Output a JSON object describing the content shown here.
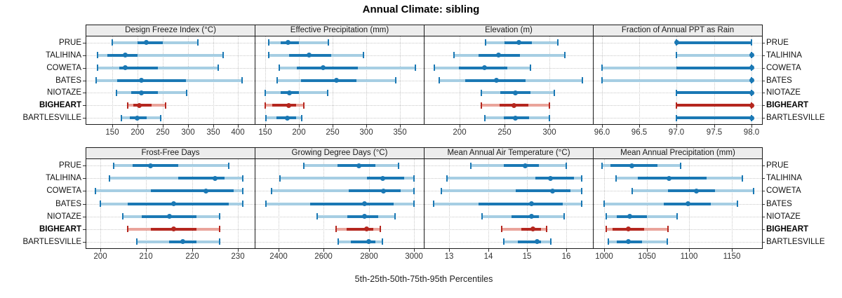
{
  "title": "Annual Climate: sibling",
  "xlabel": "5th-25th-50th-75th-95th Percentiles",
  "colors": {
    "series_normal": "#1a78b4",
    "series_normal_light": "#a6cee3",
    "series_highlight": "#b5271f",
    "series_highlight_light": "#eaa49b",
    "strip_bg": "#ededed",
    "panel_border": "#1a1a1a",
    "grid": "#c9c9c9"
  },
  "chart_data": {
    "type": "interval-dotplot-trellis",
    "title": "Annual Climate: sibling",
    "xlabel": "5th-25th-50th-75th-95th Percentiles",
    "grid": [
      2,
      4
    ],
    "legend_position": "none",
    "stations": [
      "PRUE",
      "TALIHINA",
      "COWETA",
      "BATES",
      "NIOTAZE",
      "BIGHEART",
      "BARTLESVILLE"
    ],
    "highlighted_station": "BIGHEART",
    "percentiles": [
      "5th",
      "25th",
      "50th",
      "75th",
      "95th"
    ],
    "panels": [
      {
        "title": "Design Freeze Index (°C)",
        "xlim": [
          98,
          433
        ],
        "ticks": [
          150,
          200,
          250,
          300,
          350,
          400
        ],
        "tick_labels": [
          "150",
          "200",
          "250",
          "300",
          "350",
          "400"
        ],
        "series": [
          [
            150,
            200,
            218,
            250,
            320
          ],
          [
            120,
            140,
            175,
            200,
            370
          ],
          [
            120,
            163,
            175,
            240,
            360
          ],
          [
            118,
            160,
            208,
            296,
            408
          ],
          [
            158,
            188,
            207,
            240,
            298
          ],
          [
            180,
            191,
            204,
            228,
            256
          ],
          [
            168,
            185,
            199,
            218,
            246
          ]
        ]
      },
      {
        "title": "Effective Precipitation (mm)",
        "xlim": [
          135,
          385
        ],
        "ticks": [
          150,
          200,
          250,
          300,
          350
        ],
        "tick_labels": [
          "150",
          "200",
          "250",
          "300",
          "350"
        ],
        "series": [
          [
            155,
            172,
            183,
            200,
            243
          ],
          [
            155,
            185,
            215,
            248,
            295
          ],
          [
            170,
            196,
            236,
            287,
            372
          ],
          [
            167,
            203,
            255,
            285,
            343
          ],
          [
            150,
            172,
            185,
            200,
            242
          ],
          [
            150,
            160,
            184,
            195,
            207
          ],
          [
            151,
            166,
            182,
            195,
            204
          ]
        ]
      },
      {
        "title": "Elevation (m)",
        "xlim": [
          161,
          348
        ],
        "ticks": [
          200,
          250,
          300
        ],
        "tick_labels": [
          "200",
          "250",
          "300"
        ],
        "series": [
          [
            229,
            250,
            266,
            280,
            309
          ],
          [
            194,
            221,
            243,
            267,
            317
          ],
          [
            172,
            199,
            228,
            253,
            279
          ],
          [
            177,
            206,
            241,
            273,
            336
          ],
          [
            224,
            245,
            262,
            279,
            305
          ],
          [
            224,
            244,
            260,
            276,
            300
          ],
          [
            228,
            249,
            262,
            277,
            300
          ]
        ]
      },
      {
        "title": "Fraction of Annual PPT as Rain",
        "xlim": [
          95.89,
          98.14
        ],
        "ticks": [
          96.0,
          96.5,
          97.0,
          97.5,
          98.0
        ],
        "tick_labels": [
          "96.0",
          "96.5",
          "97.0",
          "97.5",
          "98.0"
        ],
        "series": [
          [
            97,
            97,
            97,
            98,
            98
          ],
          [
            97,
            98,
            98,
            98,
            98
          ],
          [
            96,
            97,
            98,
            98,
            98
          ],
          [
            96,
            98,
            98,
            98,
            98
          ],
          [
            97,
            97,
            98,
            98,
            98
          ],
          [
            97,
            97,
            98,
            98,
            98
          ],
          [
            97,
            97,
            98,
            98,
            98
          ]
        ]
      },
      {
        "title": "Frost-Free Days",
        "xlim": [
          197,
          233.6
        ],
        "ticks": [
          200,
          210,
          220,
          230
        ],
        "tick_labels": [
          "200",
          "210",
          "220",
          "230"
        ],
        "series": [
          [
            203,
            207,
            211,
            217,
            228
          ],
          [
            202,
            217,
            225,
            227,
            231
          ],
          [
            199,
            211,
            223,
            229,
            231
          ],
          [
            200,
            206,
            216,
            228,
            231
          ],
          [
            205,
            209,
            215,
            221,
            226
          ],
          [
            206,
            211,
            216,
            221,
            226
          ],
          [
            208,
            215,
            218,
            221,
            226
          ]
        ]
      },
      {
        "title": "Growing Degree Days (°C)",
        "xlim": [
          2297,
          3043
        ],
        "ticks": [
          2400,
          2600,
          2800,
          3000
        ],
        "tick_labels": [
          "2400",
          "2600",
          "2800",
          "3000"
        ],
        "series": [
          [
            2510,
            2660,
            2755,
            2830,
            2930
          ],
          [
            2405,
            2790,
            2860,
            2955,
            3000
          ],
          [
            2370,
            2710,
            2865,
            2940,
            3000
          ],
          [
            2345,
            2540,
            2780,
            2910,
            3000
          ],
          [
            2570,
            2705,
            2780,
            2840,
            2915
          ],
          [
            2655,
            2700,
            2790,
            2820,
            2850
          ],
          [
            2665,
            2720,
            2800,
            2830,
            2860
          ]
        ]
      },
      {
        "title": "Mean Annual Air Temperature (°C)",
        "xlim": [
          12.37,
          16.68
        ],
        "ticks": [
          13,
          14,
          15,
          16
        ],
        "tick_labels": [
          "13",
          "14",
          "15",
          "16"
        ],
        "series": [
          [
            13.55,
            14.4,
            14.95,
            15.3,
            16.0
          ],
          [
            12.95,
            15.2,
            15.6,
            16.2,
            16.4
          ],
          [
            12.8,
            14.7,
            15.65,
            16.1,
            16.4
          ],
          [
            12.6,
            13.75,
            15.1,
            15.9,
            16.4
          ],
          [
            13.85,
            14.6,
            15.1,
            15.3,
            15.95
          ],
          [
            14.35,
            14.85,
            15.15,
            15.35,
            15.5
          ],
          [
            14.4,
            14.75,
            15.25,
            15.35,
            15.6
          ]
        ]
      },
      {
        "title": "Mean Annual Precipitation (mm)",
        "xlim": [
          988,
          1185
        ],
        "ticks": [
          1000,
          1050,
          1100,
          1150
        ],
        "tick_labels": [
          "1000",
          "1050",
          "1100",
          "1150"
        ],
        "series": [
          [
            998,
            1008,
            1033,
            1063,
            1090
          ],
          [
            1014,
            1040,
            1076,
            1120,
            1162
          ],
          [
            1033,
            1075,
            1108,
            1130,
            1175
          ],
          [
            1000,
            1070,
            1098,
            1125,
            1156
          ],
          [
            1003,
            1015,
            1030,
            1050,
            1086
          ],
          [
            1003,
            1010,
            1029,
            1047,
            1075
          ],
          [
            1005,
            1015,
            1029,
            1045,
            1074
          ]
        ]
      }
    ]
  }
}
